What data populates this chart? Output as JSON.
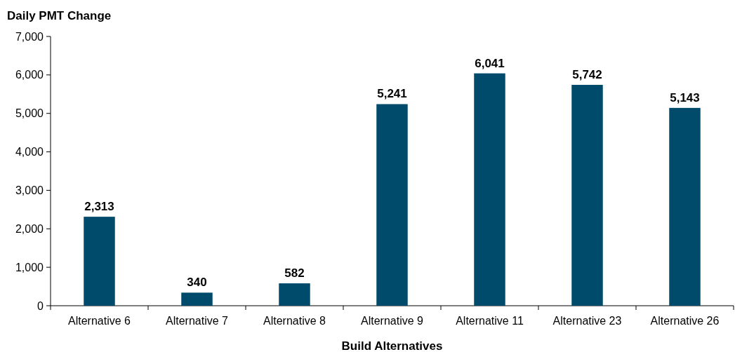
{
  "chart_data": {
    "type": "bar",
    "title": "Daily PMT Change",
    "xlabel": "Build Alternatives",
    "categories": [
      "Alternative 6",
      "Alternative 7",
      "Alternative 8",
      "Alternative 9",
      "Alternative 11",
      "Alternative 23",
      "Alternative 26"
    ],
    "values": [
      2313,
      340,
      582,
      5241,
      6041,
      5742,
      5143
    ],
    "color": "#004b6b",
    "ylim": [
      0,
      7000
    ],
    "yticks": [
      {
        "value": 0,
        "label": "0"
      },
      {
        "value": 1000,
        "label": "1,000"
      },
      {
        "value": 2000,
        "label": "2,000"
      },
      {
        "value": 3000,
        "label": "3,000"
      },
      {
        "value": 4000,
        "label": "4,000"
      },
      {
        "value": 5000,
        "label": "5,000"
      },
      {
        "value": 6000,
        "label": "6,000"
      },
      {
        "value": 7000,
        "label": "7,000"
      }
    ],
    "value_labels": [
      "2,313",
      "340",
      "582",
      "5,241",
      "6,041",
      "5,742",
      "5,143"
    ],
    "grid": false
  }
}
